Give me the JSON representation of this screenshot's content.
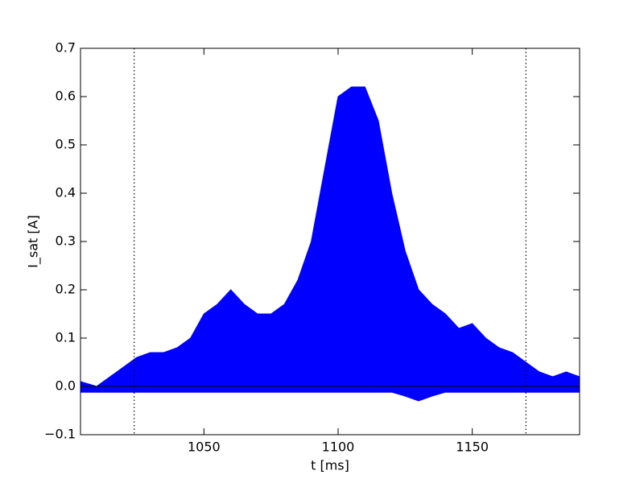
{
  "chart_data": {
    "type": "band",
    "xlabel": "t [ms]",
    "ylabel": "I_sat [A]",
    "color": "#0000ff",
    "x": [
      1004,
      1010,
      1015,
      1020,
      1025,
      1030,
      1035,
      1040,
      1045,
      1050,
      1055,
      1060,
      1065,
      1070,
      1075,
      1080,
      1085,
      1090,
      1095,
      1100,
      1105,
      1110,
      1115,
      1120,
      1125,
      1130,
      1135,
      1140,
      1145,
      1150,
      1155,
      1160,
      1165,
      1170,
      1175,
      1180,
      1185,
      1190
    ],
    "values": [
      0.01,
      0.0,
      0.02,
      0.04,
      0.06,
      0.07,
      0.07,
      0.08,
      0.1,
      0.15,
      0.17,
      0.2,
      0.17,
      0.15,
      0.15,
      0.17,
      0.22,
      0.3,
      0.45,
      0.6,
      0.62,
      0.62,
      0.55,
      0.4,
      0.28,
      0.2,
      0.17,
      0.15,
      0.12,
      0.13,
      0.1,
      0.08,
      0.07,
      0.05,
      0.03,
      0.02,
      0.03,
      0.02
    ],
    "lower_values": [
      -0.012,
      -0.012,
      -0.012,
      -0.012,
      -0.012,
      -0.012,
      -0.012,
      -0.012,
      -0.012,
      -0.012,
      -0.012,
      -0.012,
      -0.012,
      -0.012,
      -0.012,
      -0.012,
      -0.012,
      -0.012,
      -0.012,
      -0.012,
      -0.012,
      -0.012,
      -0.012,
      -0.012,
      -0.02,
      -0.03,
      -0.02,
      -0.012,
      -0.012,
      -0.012,
      -0.012,
      -0.012,
      -0.012,
      -0.012,
      -0.012,
      -0.012,
      -0.012,
      -0.012
    ],
    "vlines": [
      1024,
      1170
    ],
    "hline": 0,
    "xlim": [
      1004,
      1190
    ],
    "xticks": [
      1050,
      1100,
      1150
    ],
    "ylim": [
      -0.1,
      0.7
    ],
    "yticks": [
      {
        "value": -0.1,
        "label": "−0.1"
      },
      {
        "value": 0,
        "label": "0.0"
      },
      0.1,
      0.2,
      0.3,
      0.4,
      0.5,
      0.6,
      0.7
    ]
  }
}
